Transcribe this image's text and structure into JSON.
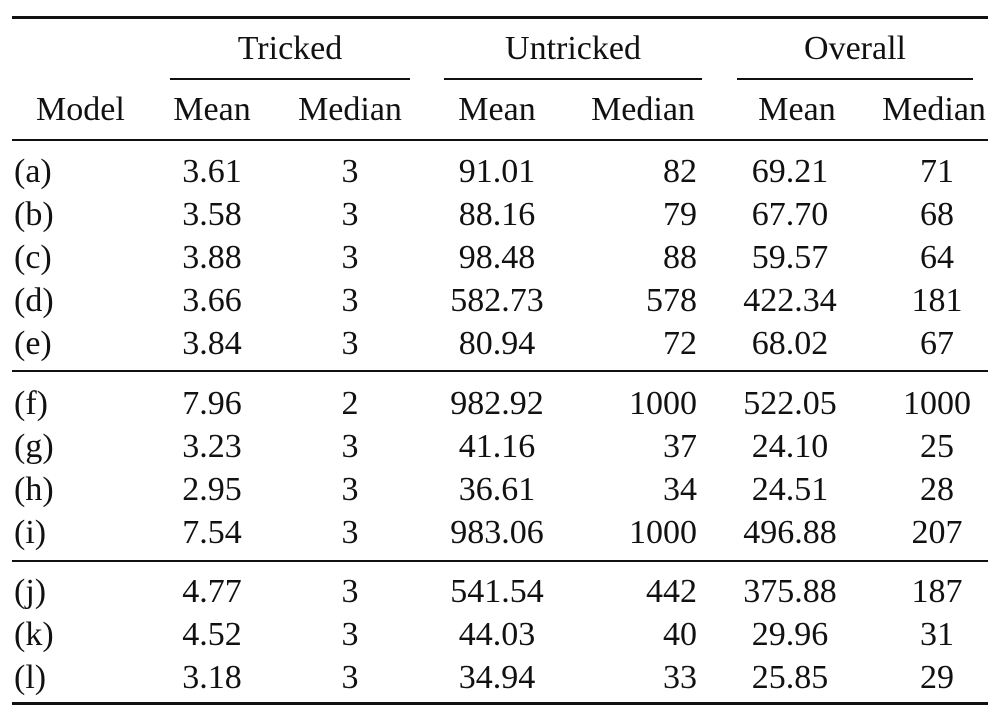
{
  "table": {
    "groups": {
      "tricked": "Tricked",
      "untricked": "Untricked",
      "overall": "Overall"
    },
    "columns": {
      "model": "Model",
      "tricked_mean": "Mean",
      "tricked_median": "Median",
      "untricked_mean": "Mean",
      "untricked_median": "Median",
      "overall_mean": "Mean",
      "overall_median": "Median"
    },
    "rows": [
      {
        "model": "(a)",
        "t_mean": "3.61",
        "t_median": "3",
        "u_mean": "91.01",
        "u_median": "82",
        "o_mean": "69.21",
        "o_median": "71"
      },
      {
        "model": "(b)",
        "t_mean": "3.58",
        "t_median": "3",
        "u_mean": "88.16",
        "u_median": "79",
        "o_mean": "67.70",
        "o_median": "68"
      },
      {
        "model": "(c)",
        "t_mean": "3.88",
        "t_median": "3",
        "u_mean": "98.48",
        "u_median": "88",
        "o_mean": "59.57",
        "o_median": "64"
      },
      {
        "model": "(d)",
        "t_mean": "3.66",
        "t_median": "3",
        "u_mean": "582.73",
        "u_median": "578",
        "o_mean": "422.34",
        "o_median": "181"
      },
      {
        "model": "(e)",
        "t_mean": "3.84",
        "t_median": "3",
        "u_mean": "80.94",
        "u_median": "72",
        "o_mean": "68.02",
        "o_median": "67"
      },
      {
        "model": "(f)",
        "t_mean": "7.96",
        "t_median": "2",
        "u_mean": "982.92",
        "u_median": "1000",
        "o_mean": "522.05",
        "o_median": "1000"
      },
      {
        "model": "(g)",
        "t_mean": "3.23",
        "t_median": "3",
        "u_mean": "41.16",
        "u_median": "37",
        "o_mean": "24.10",
        "o_median": "25"
      },
      {
        "model": "(h)",
        "t_mean": "2.95",
        "t_median": "3",
        "u_mean": "36.61",
        "u_median": "34",
        "o_mean": "24.51",
        "o_median": "28"
      },
      {
        "model": "(i)",
        "t_mean": "7.54",
        "t_median": "3",
        "u_mean": "983.06",
        "u_median": "1000",
        "o_mean": "496.88",
        "o_median": "207"
      },
      {
        "model": "(j)",
        "t_mean": "4.77",
        "t_median": "3",
        "u_mean": "541.54",
        "u_median": "442",
        "o_mean": "375.88",
        "o_median": "187"
      },
      {
        "model": "(k)",
        "t_mean": "4.52",
        "t_median": "3",
        "u_mean": "44.03",
        "u_median": "40",
        "o_mean": "29.96",
        "o_median": "31"
      },
      {
        "model": "(l)",
        "t_mean": "3.18",
        "t_median": "3",
        "u_mean": "34.94",
        "u_median": "33",
        "o_mean": "25.85",
        "o_median": "29"
      }
    ]
  }
}
